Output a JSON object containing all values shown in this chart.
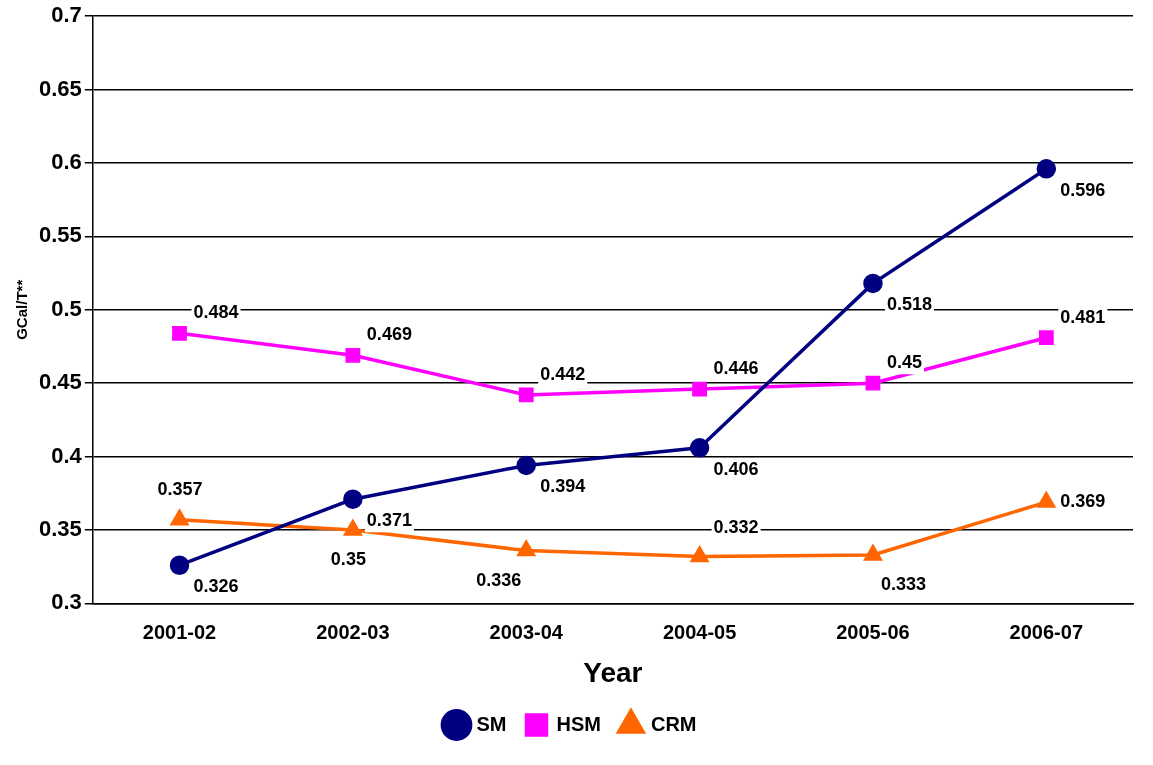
{
  "chart_data": {
    "type": "line",
    "xlabel": "Year",
    "ylabel": "GCal/T**",
    "categories": [
      "2001-02",
      "2002-03",
      "2003-04",
      "2004-05",
      "2005-06",
      "2006-07"
    ],
    "series": [
      {
        "name": "SM",
        "color": "#000080",
        "marker": "circle",
        "values": [
          0.326,
          0.371,
          0.394,
          0.406,
          0.518,
          0.596
        ]
      },
      {
        "name": "HSM",
        "color": "#ff00ff",
        "marker": "square",
        "values": [
          0.484,
          0.469,
          0.442,
          0.446,
          0.45,
          0.481
        ]
      },
      {
        "name": "CRM",
        "color": "#ff6600",
        "marker": "triangle",
        "values": [
          0.357,
          0.35,
          0.336,
          0.332,
          0.333,
          0.369
        ]
      }
    ],
    "ylim": [
      0.3,
      0.7
    ],
    "yticks": [
      0.3,
      0.35,
      0.4,
      0.45,
      0.5,
      0.55,
      0.6,
      0.65,
      0.7
    ],
    "grid": "y",
    "legend": "bottom",
    "data_labels": true,
    "line_style": "solid"
  }
}
